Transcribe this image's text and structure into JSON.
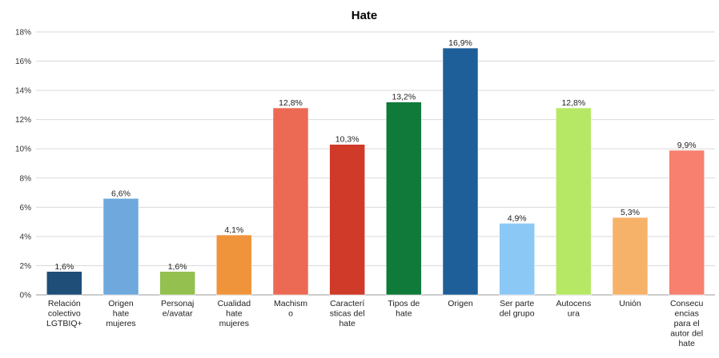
{
  "chart_data": {
    "type": "bar",
    "title": "Hate",
    "xlabel": "",
    "ylabel": "",
    "ylim": [
      0,
      18
    ],
    "yticks": [
      "0%",
      "2%",
      "4%",
      "6%",
      "8%",
      "10%",
      "12%",
      "14%",
      "16%",
      "18%"
    ],
    "grid": true,
    "legend": "none",
    "categories": [
      [
        "Relación",
        "colectivo",
        "LGTBIQ+"
      ],
      [
        "Origen",
        "hate",
        "mujeres"
      ],
      [
        "Personaj",
        "e/avatar"
      ],
      [
        "Cualidad",
        "hate",
        "mujeres"
      ],
      [
        "Machism",
        "o"
      ],
      [
        "Caracterí",
        "sticas del",
        "hate"
      ],
      [
        "Tipos de",
        "hate"
      ],
      [
        "Origen"
      ],
      [
        "Ser parte",
        "del grupo"
      ],
      [
        "Autocens",
        "ura"
      ],
      [
        "Unión"
      ],
      [
        "Consecu",
        "encias",
        "para el",
        "autor del",
        "hate"
      ]
    ],
    "values": [
      1.6,
      6.6,
      1.6,
      4.1,
      12.8,
      10.3,
      13.2,
      16.9,
      4.9,
      12.8,
      5.3,
      9.9
    ],
    "labels": [
      "1,6%",
      "6,6%",
      "1,6%",
      "4,1%",
      "12,8%",
      "10,3%",
      "13,2%",
      "16,9%",
      "4,9%",
      "12,8%",
      "5,3%",
      "9,9%"
    ],
    "colors": [
      "#1f4e79",
      "#6fa8dc",
      "#93c04f",
      "#f0943c",
      "#ec6a53",
      "#d03a28",
      "#0f7a3a",
      "#1f5f99",
      "#8cc8f5",
      "#b6e866",
      "#f7b26a",
      "#f7806e"
    ]
  }
}
